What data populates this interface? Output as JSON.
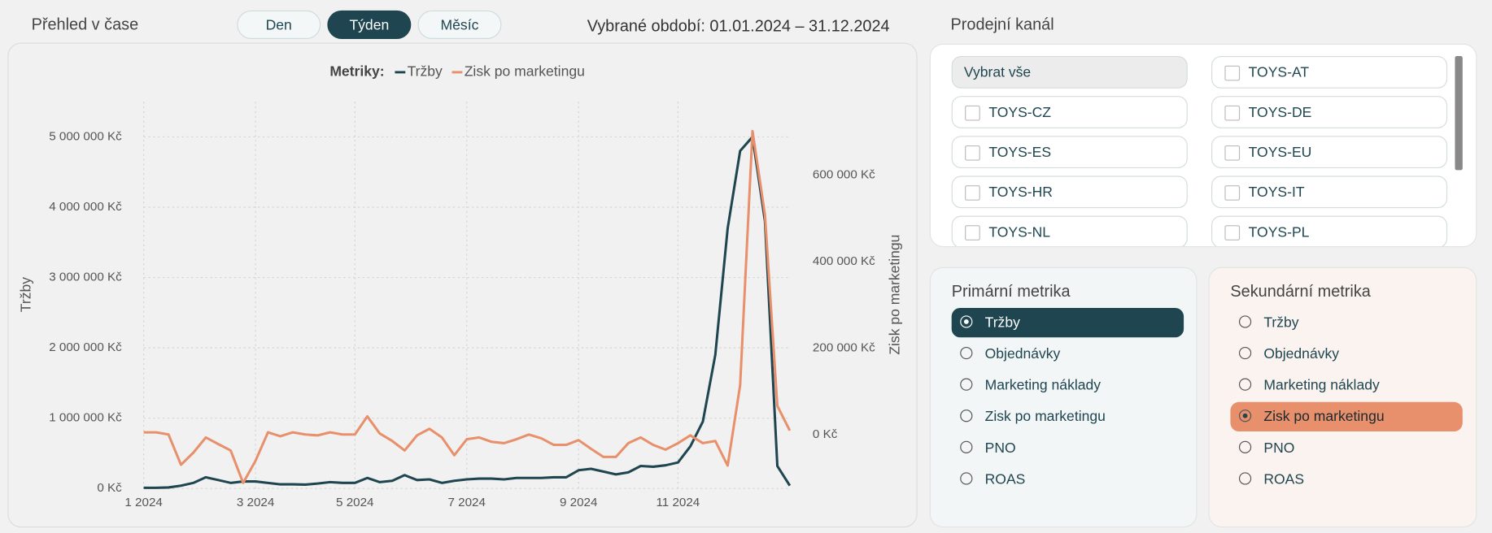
{
  "header": {
    "title": "Přehled v čase",
    "tabs": [
      "Den",
      "Týden",
      "Měsíc"
    ],
    "active_tab": "Týden",
    "period": "Vybrané období: 01.01.2024 – 31.12.2024"
  },
  "chart_data": {
    "type": "line",
    "legend_title": "Metriky:",
    "y_label": "Tržby",
    "y2_label": "Zisk po marketingu",
    "categories": [
      "1 2024",
      null,
      null,
      null,
      null,
      null,
      null,
      null,
      null,
      "3 2024",
      null,
      null,
      null,
      null,
      null,
      null,
      null,
      "5 2024",
      null,
      null,
      null,
      null,
      null,
      null,
      null,
      null,
      "7 2024",
      null,
      null,
      null,
      null,
      null,
      null,
      null,
      null,
      "9 2024",
      null,
      null,
      null,
      null,
      null,
      null,
      null,
      "11 2024",
      null,
      null,
      null,
      null,
      null,
      null,
      null,
      null,
      null
    ],
    "series": [
      {
        "name": "Tržby",
        "color": "#1f4650",
        "values": [
          10000,
          10000,
          15000,
          40000,
          80000,
          160000,
          120000,
          80000,
          100000,
          100000,
          80000,
          60000,
          60000,
          55000,
          70000,
          90000,
          80000,
          80000,
          150000,
          90000,
          110000,
          190000,
          120000,
          130000,
          80000,
          110000,
          130000,
          140000,
          140000,
          130000,
          150000,
          150000,
          150000,
          160000,
          160000,
          260000,
          280000,
          240000,
          200000,
          230000,
          320000,
          310000,
          330000,
          370000,
          600000,
          950000,
          1900000,
          3700000,
          4800000,
          5000000,
          3800000,
          320000,
          40000
        ]
      },
      {
        "name": "Zisk po marketingu",
        "color": "#e8906c",
        "axis": "y2",
        "values": [
          5000,
          5000,
          0,
          -70000,
          -42000,
          -7000,
          -22000,
          -37000,
          -112000,
          -61000,
          5000,
          -4000,
          5000,
          0,
          -2000,
          5000,
          0,
          0,
          42000,
          2000,
          -15000,
          -37000,
          -2000,
          13000,
          -7000,
          -48000,
          -11000,
          -7000,
          -17000,
          -20000,
          -11000,
          0,
          -9000,
          -24000,
          -24000,
          -13000,
          -33000,
          -52000,
          -52000,
          -20000,
          -7000,
          -24000,
          -35000,
          -20000,
          -2000,
          -20000,
          -15000,
          -72000,
          114000,
          702000,
          508000,
          66000,
          9000
        ]
      }
    ],
    "ylim": [
      0,
      5500000
    ],
    "yticks": [
      {
        "value": 0,
        "label": "0 Kč"
      },
      {
        "value": 1000000,
        "label": "1 000 000 Kč"
      },
      {
        "value": 2000000,
        "label": "2 000 000 Kč"
      },
      {
        "value": 3000000,
        "label": "3 000 000 Kč"
      },
      {
        "value": 4000000,
        "label": "4 000 000 Kč"
      },
      {
        "value": 5000000,
        "label": "5 000 000 Kč"
      }
    ],
    "y2lim": [
      -125000,
      770000
    ],
    "y2ticks": [
      {
        "value": 0,
        "label": "0 Kč"
      },
      {
        "value": 200000,
        "label": "200 000 Kč"
      },
      {
        "value": 400000,
        "label": "400 000 Kč"
      },
      {
        "value": 600000,
        "label": "600 000 Kč"
      }
    ],
    "grid": true
  },
  "channels": {
    "title": "Prodejní kanál",
    "options": [
      "Vybrat vše",
      "TOYS-AT",
      "TOYS-CZ",
      "TOYS-DE",
      "TOYS-ES",
      "TOYS-EU",
      "TOYS-HR",
      "TOYS-IT",
      "TOYS-NL",
      "TOYS-PL"
    ]
  },
  "primary_metric": {
    "title": "Primární metrika",
    "options": [
      "Tržby",
      "Objednávky",
      "Marketing náklady",
      "Zisk po marketingu",
      "PNO",
      "ROAS"
    ],
    "selected": "Tržby"
  },
  "secondary_metric": {
    "title": "Sekundární metrika",
    "options": [
      "Tržby",
      "Objednávky",
      "Marketing náklady",
      "Zisk po marketingu",
      "PNO",
      "ROAS"
    ],
    "selected": "Zisk po marketingu"
  }
}
